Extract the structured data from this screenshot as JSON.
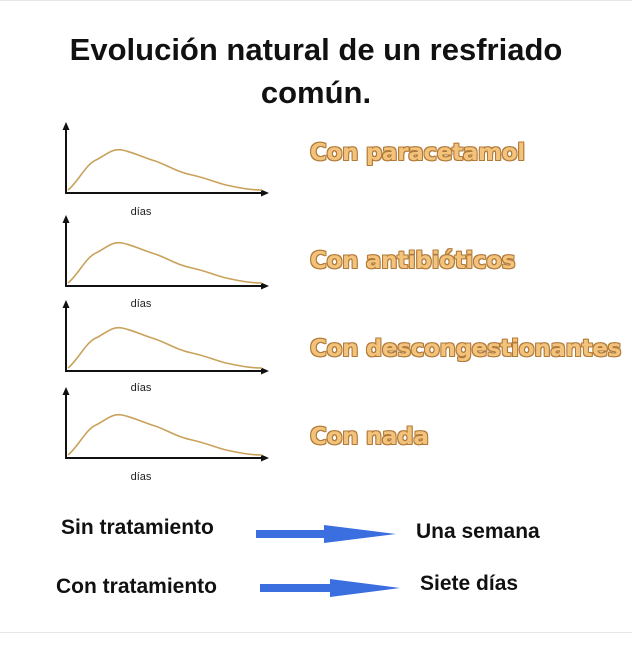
{
  "title_line1": "Evolución natural de un resfriado",
  "title_line2": "común.",
  "charts": [
    {
      "xlabel": "días",
      "label": "Con paracetamol"
    },
    {
      "xlabel": "días",
      "label": "Con antibióticos"
    },
    {
      "xlabel": "días",
      "label": "Con descongestionantes"
    },
    {
      "xlabel": "días",
      "label": "Con nada"
    }
  ],
  "joke": {
    "row1_left": "Sin tratamiento",
    "row1_right": "Una semana",
    "row2_left": "Con tratamiento",
    "row2_right": "Siete días"
  },
  "colors": {
    "curve": "#c9a25a",
    "label_fill": "#f4c37b",
    "label_outline": "#b07a3a",
    "arrow": "#3b6fe0"
  }
}
